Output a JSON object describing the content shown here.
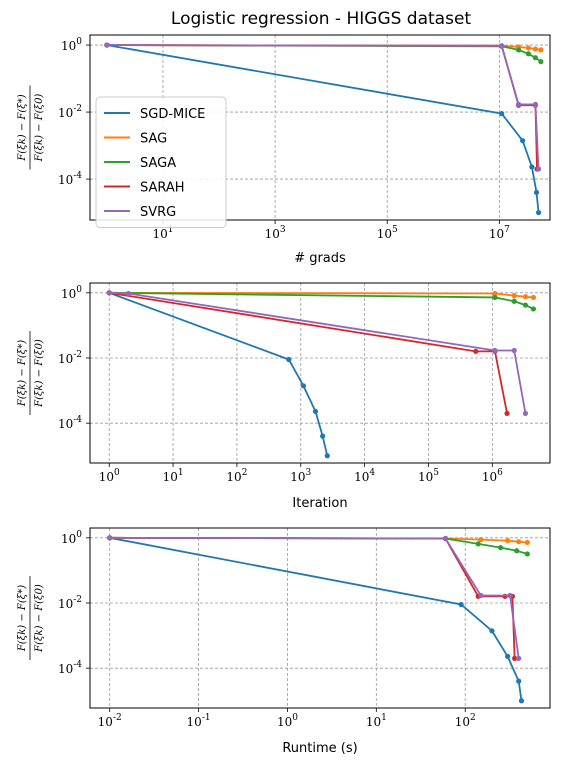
{
  "figure_title": "Logistic regression - HIGGS dataset",
  "colors": {
    "SGD-MICE": "#1f77b4",
    "SAG": "#ff7f0e",
    "SAGA": "#2ca02c",
    "SARAH": "#d62728",
    "SVRG": "#9467bd"
  },
  "legend_labels": [
    "SGD-MICE",
    "SAG",
    "SAGA",
    "SARAH",
    "SVRG"
  ],
  "chart_data": [
    {
      "type": "line",
      "title": "Logistic regression - HIGGS dataset",
      "xlabel": "# grads",
      "ylabel_num": "F(ξk) − F(ξ*)",
      "ylabel_den": "F(ξk) − F(ξ0)",
      "xscale": "log",
      "yscale": "log",
      "xlim": [
        0.5,
        80000000
      ],
      "ylim": [
        6e-06,
        2
      ],
      "xticks": [
        10,
        1000,
        100000,
        10000000
      ],
      "xtick_labels": [
        "10^1",
        "10^3",
        "10^5",
        "10^7"
      ],
      "yticks": [
        1,
        0.01,
        0.0001
      ],
      "ytick_labels": [
        "10^0",
        "10^-2",
        "10^-4"
      ],
      "grid": true,
      "legend": "center-left",
      "series": [
        {
          "name": "SGD-MICE",
          "x": [
            1,
            11000000,
            26000000,
            38000000,
            46000000,
            50000000
          ],
          "y": [
            1,
            0.009,
            0.0014,
            0.00023,
            4e-05,
            1e-05
          ]
        },
        {
          "name": "SAG",
          "x": [
            1,
            11000000,
            22000000,
            33000000,
            44000000,
            55000000
          ],
          "y": [
            1,
            0.95,
            0.88,
            0.82,
            0.76,
            0.72
          ]
        },
        {
          "name": "SAGA",
          "x": [
            1,
            11000000,
            22000000,
            33000000,
            44000000,
            55000000
          ],
          "y": [
            1,
            0.92,
            0.72,
            0.55,
            0.42,
            0.32
          ]
        },
        {
          "name": "SARAH",
          "x": [
            1,
            11000000,
            22000000,
            44000000,
            47000000
          ],
          "y": [
            1,
            0.95,
            0.016,
            0.016,
            0.0002
          ]
        },
        {
          "name": "SVRG",
          "x": [
            1,
            11000000,
            22000000,
            44000000,
            50000000
          ],
          "y": [
            1,
            0.95,
            0.017,
            0.017,
            0.0002
          ]
        }
      ]
    },
    {
      "type": "line",
      "xlabel": "Iteration",
      "ylabel_num": "F(ξk) − F(ξ*)",
      "ylabel_den": "F(ξk) − F(ξ0)",
      "xscale": "log",
      "yscale": "log",
      "xlim": [
        0.5,
        8000000
      ],
      "ylim": [
        6e-06,
        2
      ],
      "xticks": [
        1,
        10,
        100,
        1000,
        10000,
        100000,
        1000000
      ],
      "xtick_labels": [
        "10^0",
        "10^1",
        "10^2",
        "10^3",
        "10^4",
        "10^5",
        "10^6"
      ],
      "yticks": [
        1,
        0.01,
        0.0001
      ],
      "ytick_labels": [
        "10^0",
        "10^-2",
        "10^-4"
      ],
      "grid": true,
      "series": [
        {
          "name": "SGD-MICE",
          "x": [
            1,
            650,
            1100,
            1700,
            2200,
            2600
          ],
          "y": [
            1,
            0.009,
            0.0014,
            0.00023,
            4e-05,
            1e-05
          ]
        },
        {
          "name": "SAG",
          "x": [
            1,
            1100000,
            2200000,
            3300000,
            4400000
          ],
          "y": [
            1,
            0.95,
            0.82,
            0.76,
            0.72
          ]
        },
        {
          "name": "SAGA",
          "x": [
            1,
            1100000,
            2200000,
            3300000,
            4400000
          ],
          "y": [
            1,
            0.72,
            0.55,
            0.42,
            0.32
          ]
        },
        {
          "name": "SARAH",
          "x": [
            1,
            550000,
            1100000,
            1700000
          ],
          "y": [
            1,
            0.016,
            0.016,
            0.0002
          ]
        },
        {
          "name": "SVRG",
          "x": [
            1,
            2,
            1100000,
            2200000,
            3300000
          ],
          "y": [
            1,
            0.95,
            0.017,
            0.017,
            0.0002
          ]
        }
      ]
    },
    {
      "type": "line",
      "xlabel": "Runtime (s)",
      "ylabel_num": "F(ξk) − F(ξ*)",
      "ylabel_den": "F(ξk) − F(ξ0)",
      "xscale": "log",
      "yscale": "log",
      "xlim": [
        0.006,
        900
      ],
      "ylim": [
        6e-06,
        2
      ],
      "xticks": [
        0.01,
        0.1,
        1,
        10,
        100
      ],
      "xtick_labels": [
        "10^-2",
        "10^-1",
        "10^0",
        "10^1",
        "10^2"
      ],
      "yticks": [
        1,
        0.01,
        0.0001
      ],
      "ytick_labels": [
        "10^0",
        "10^-2",
        "10^-4"
      ],
      "grid": true,
      "series": [
        {
          "name": "SGD-MICE",
          "x": [
            0.01,
            90,
            200,
            300,
            400,
            430
          ],
          "y": [
            1,
            0.009,
            0.0014,
            0.00023,
            4e-05,
            1e-05
          ]
        },
        {
          "name": "SAG",
          "x": [
            0.01,
            60,
            150,
            300,
            400,
            500
          ],
          "y": [
            1,
            0.95,
            0.88,
            0.82,
            0.76,
            0.72
          ]
        },
        {
          "name": "SAGA",
          "x": [
            0.01,
            60,
            140,
            250,
            380,
            500
          ],
          "y": [
            1,
            0.95,
            0.65,
            0.5,
            0.4,
            0.32
          ]
        },
        {
          "name": "SARAH",
          "x": [
            0.01,
            60,
            140,
            280,
            340,
            360
          ],
          "y": [
            1,
            0.95,
            0.016,
            0.016,
            0.016,
            0.0002
          ]
        },
        {
          "name": "SVRG",
          "x": [
            0.01,
            60,
            150,
            320,
            400
          ],
          "y": [
            1,
            0.95,
            0.017,
            0.017,
            0.0002
          ]
        }
      ]
    }
  ]
}
